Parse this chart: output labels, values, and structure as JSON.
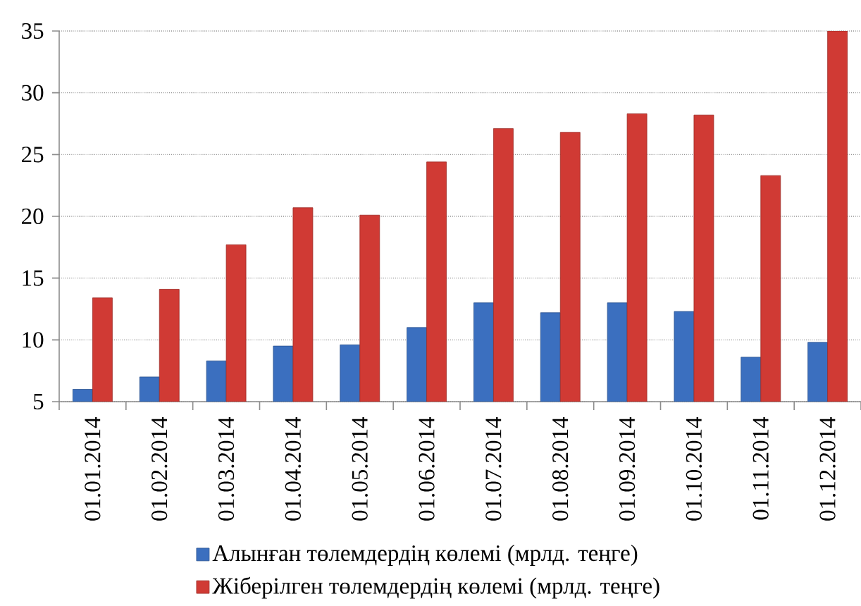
{
  "chart_data": {
    "type": "bar",
    "categories": [
      "01.01.2014",
      "01.02.2014",
      "01.03.2014",
      "01.04.2014",
      "01.05.2014",
      "01.06.2014",
      "01.07.2014",
      "01.08.2014",
      "01.09.2014",
      "01.10.2014",
      "01.11.2014",
      "01.12.2014"
    ],
    "series": [
      {
        "name": "Алынған төлемдердің көлемі (мрлд. теңге)",
        "color": "#3b6fbf",
        "values": [
          6.0,
          7.0,
          8.3,
          9.5,
          9.6,
          11.0,
          13.0,
          12.2,
          13.0,
          12.3,
          8.6,
          9.8
        ]
      },
      {
        "name": "Жіберілген төлемдердің көлемі (мрлд. теңге)",
        "color": "#d03a34",
        "values": [
          13.4,
          14.1,
          17.7,
          20.7,
          20.1,
          24.4,
          27.1,
          26.8,
          28.3,
          28.2,
          23.3,
          35.0
        ]
      }
    ],
    "ylim": [
      5,
      35
    ],
    "yticks": [
      5,
      10,
      15,
      20,
      25,
      30,
      35
    ],
    "grid": "y",
    "legend": "bottom"
  }
}
